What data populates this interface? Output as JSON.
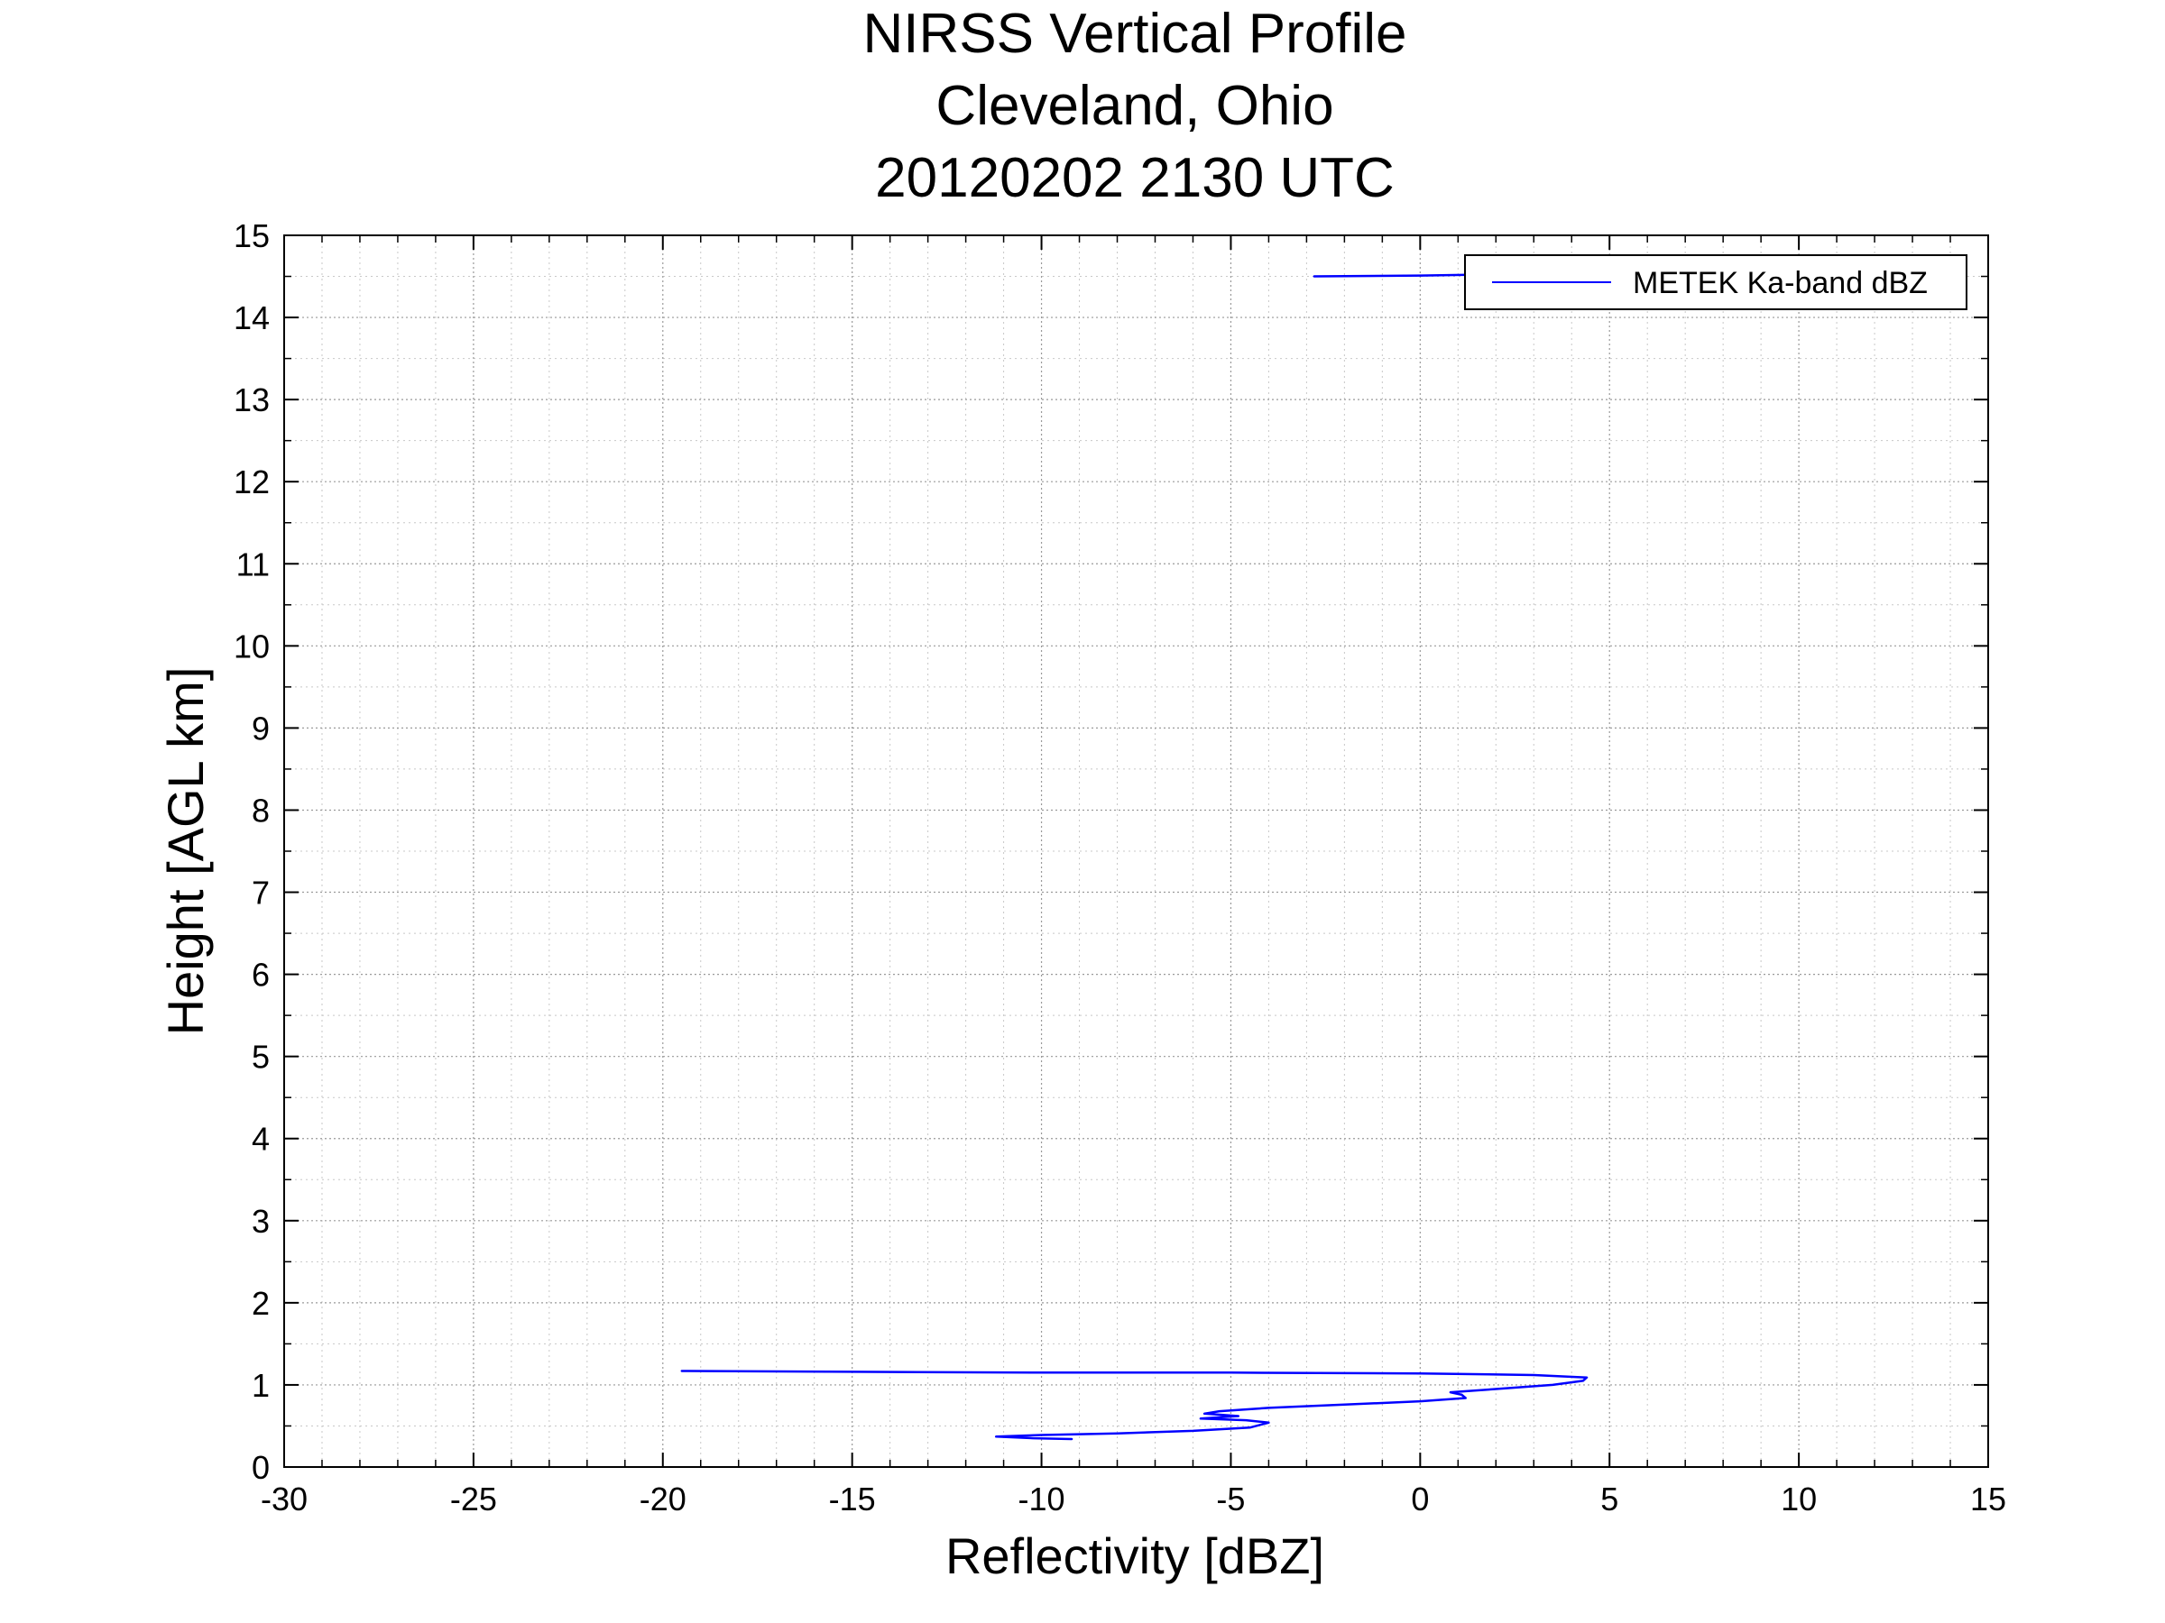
{
  "chart_data": {
    "type": "line",
    "title": [
      "NIRSS Vertical Profile",
      "Cleveland, Ohio",
      "20120202 2130 UTC"
    ],
    "xlabel": "Reflectivity [dBZ]",
    "ylabel": "Height [AGL km]",
    "xlim": [
      -30,
      15
    ],
    "ylim": [
      0,
      15
    ],
    "xticks": [
      -30,
      -25,
      -20,
      -15,
      -10,
      -5,
      0,
      5,
      10,
      15
    ],
    "yticks": [
      0,
      1,
      2,
      3,
      4,
      5,
      6,
      7,
      8,
      9,
      10,
      11,
      12,
      13,
      14,
      15
    ],
    "grid": true,
    "minor_grid": true,
    "legend_position": "top-right",
    "series": [
      {
        "name": "METEK Ka-band dBZ",
        "color": "#0000ff",
        "segments": [
          [
            [
              -9.2,
              0.34
            ],
            [
              -10.2,
              0.35
            ],
            [
              -11.2,
              0.37
            ],
            [
              -10.0,
              0.39
            ],
            [
              -8.0,
              0.41
            ],
            [
              -6.0,
              0.44
            ],
            [
              -4.5,
              0.48
            ],
            [
              -4.0,
              0.54
            ],
            [
              -4.6,
              0.57
            ],
            [
              -5.8,
              0.59
            ],
            [
              -4.8,
              0.62
            ],
            [
              -5.7,
              0.65
            ],
            [
              -5.3,
              0.68
            ],
            [
              -4.0,
              0.72
            ],
            [
              -2.0,
              0.76
            ],
            [
              0.0,
              0.8
            ],
            [
              1.2,
              0.84
            ],
            [
              1.1,
              0.88
            ],
            [
              0.8,
              0.91
            ],
            [
              2.0,
              0.95
            ],
            [
              3.5,
              1.0
            ],
            [
              4.3,
              1.05
            ],
            [
              4.4,
              1.09
            ],
            [
              3.0,
              1.12
            ],
            [
              0.0,
              1.14
            ],
            [
              -5.0,
              1.15
            ],
            [
              -10.0,
              1.15
            ],
            [
              -15.0,
              1.16
            ],
            [
              -19.5,
              1.17
            ]
          ],
          [
            [
              -2.8,
              14.5
            ],
            [
              0.0,
              14.51
            ],
            [
              1.3,
              14.52
            ]
          ]
        ]
      }
    ]
  }
}
